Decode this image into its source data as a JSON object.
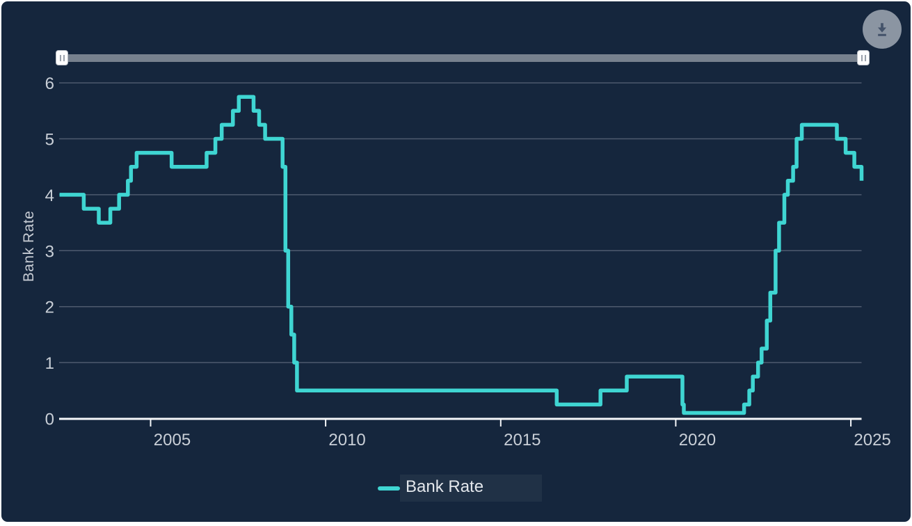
{
  "download": {
    "icon": "download-icon"
  },
  "navigator": {
    "range_start_handle": "grip-icon",
    "range_end_handle": "grip-icon"
  },
  "chart_data": {
    "type": "line",
    "step": "left",
    "title": "",
    "xlabel": "",
    "ylabel": "Bank Rate",
    "ylim": [
      0,
      6
    ],
    "xlim_years": [
      2002.4,
      2025.44
    ],
    "grid": true,
    "y_ticks": [
      "0",
      "1",
      "2",
      "3",
      "4",
      "5",
      "6"
    ],
    "x_ticks": [
      "2005",
      "2010",
      "2015",
      "2020",
      "2025"
    ],
    "legend": {
      "position": "bottom"
    },
    "colors": {
      "background": "#15263D",
      "line": "#3FD5D2",
      "gridline": "#4E5A6E",
      "axis_line": "#F5F7F9",
      "tick_label": "#C9CFD7"
    },
    "series": [
      {
        "name": "Bank Rate",
        "color": "#3FD5D2",
        "points": [
          [
            2002.4,
            4.0
          ],
          [
            2003.09,
            3.75
          ],
          [
            2003.52,
            3.5
          ],
          [
            2003.85,
            3.75
          ],
          [
            2004.1,
            4.0
          ],
          [
            2004.35,
            4.25
          ],
          [
            2004.44,
            4.5
          ],
          [
            2004.6,
            4.75
          ],
          [
            2005.6,
            4.5
          ],
          [
            2006.6,
            4.75
          ],
          [
            2006.85,
            5.0
          ],
          [
            2007.03,
            5.25
          ],
          [
            2007.35,
            5.5
          ],
          [
            2007.52,
            5.75
          ],
          [
            2007.94,
            5.5
          ],
          [
            2008.1,
            5.25
          ],
          [
            2008.27,
            5.0
          ],
          [
            2008.77,
            4.5
          ],
          [
            2008.85,
            3.0
          ],
          [
            2008.93,
            2.0
          ],
          [
            2009.02,
            1.5
          ],
          [
            2009.1,
            1.0
          ],
          [
            2009.18,
            0.5
          ],
          [
            2016.6,
            0.25
          ],
          [
            2017.85,
            0.5
          ],
          [
            2018.6,
            0.75
          ],
          [
            2020.19,
            0.25
          ],
          [
            2020.23,
            0.1
          ],
          [
            2021.95,
            0.25
          ],
          [
            2022.1,
            0.5
          ],
          [
            2022.2,
            0.75
          ],
          [
            2022.35,
            1.0
          ],
          [
            2022.45,
            1.25
          ],
          [
            2022.6,
            1.75
          ],
          [
            2022.7,
            2.25
          ],
          [
            2022.85,
            3.0
          ],
          [
            2022.95,
            3.5
          ],
          [
            2023.1,
            4.0
          ],
          [
            2023.2,
            4.25
          ],
          [
            2023.35,
            4.5
          ],
          [
            2023.45,
            5.0
          ],
          [
            2023.6,
            5.25
          ],
          [
            2024.6,
            5.0
          ],
          [
            2024.85,
            4.75
          ],
          [
            2025.1,
            4.5
          ],
          [
            2025.35,
            4.25
          ]
        ]
      }
    ]
  }
}
